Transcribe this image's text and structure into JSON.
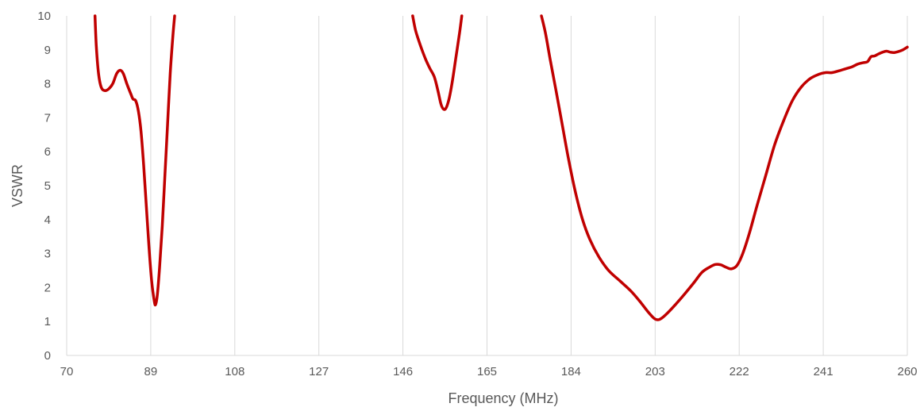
{
  "chart_data": {
    "type": "line",
    "title": "",
    "xlabel": "Frequency (MHz)",
    "ylabel": "VSWR",
    "xlim": [
      70,
      260
    ],
    "ylim": [
      0,
      10
    ],
    "x_ticks": [
      70,
      89,
      108,
      127,
      146,
      165,
      184,
      203,
      222,
      241,
      260
    ],
    "y_ticks": [
      0,
      1,
      2,
      3,
      4,
      5,
      6,
      7,
      8,
      9,
      10
    ],
    "x_tick_labels": [
      "70",
      "89",
      "108",
      "127",
      "146",
      "165",
      "184",
      "203",
      "222",
      "241",
      "260"
    ],
    "y_tick_labels": [
      "0",
      "1",
      "2",
      "3",
      "4",
      "5",
      "6",
      "7",
      "8",
      "9",
      "10"
    ],
    "grid": "vertical",
    "legend": "none",
    "line_color": "#c00000",
    "grid_color": "#d9d9d9",
    "text_color": "#595959",
    "series": [
      {
        "segments": [
          [
            [
              76.4,
              10
            ],
            [
              76.7,
              9.1
            ],
            [
              77.2,
              8.3
            ],
            [
              77.8,
              7.9
            ],
            [
              78.6,
              7.8
            ],
            [
              79.5,
              7.85
            ],
            [
              80.4,
              8.0
            ],
            [
              81.3,
              8.3
            ],
            [
              82.1,
              8.4
            ],
            [
              82.8,
              8.3
            ],
            [
              83.6,
              8.0
            ],
            [
              84.5,
              7.7
            ],
            [
              85.0,
              7.55
            ],
            [
              85.6,
              7.5
            ],
            [
              86.2,
              7.2
            ],
            [
              86.8,
              6.6
            ],
            [
              87.4,
              5.6
            ],
            [
              88.0,
              4.4
            ],
            [
              88.6,
              3.2
            ],
            [
              89.2,
              2.2
            ],
            [
              89.8,
              1.6
            ],
            [
              90.1,
              1.5
            ],
            [
              90.5,
              1.8
            ],
            [
              91.0,
              2.6
            ],
            [
              91.6,
              3.8
            ],
            [
              92.2,
              5.3
            ],
            [
              92.8,
              6.8
            ],
            [
              93.4,
              8.3
            ],
            [
              94.0,
              9.4
            ],
            [
              94.4,
              10
            ]
          ],
          [
            [
              148.2,
              10
            ],
            [
              148.8,
              9.6
            ],
            [
              149.5,
              9.3
            ],
            [
              150.3,
              9.0
            ],
            [
              151.2,
              8.7
            ],
            [
              152.1,
              8.45
            ],
            [
              153.1,
              8.2
            ],
            [
              153.9,
              7.8
            ],
            [
              154.6,
              7.4
            ],
            [
              155.2,
              7.25
            ],
            [
              155.8,
              7.3
            ],
            [
              156.5,
              7.6
            ],
            [
              157.2,
              8.1
            ],
            [
              158.0,
              8.8
            ],
            [
              158.8,
              9.5
            ],
            [
              159.3,
              10
            ]
          ],
          [
            [
              177.3,
              10
            ],
            [
              178.2,
              9.5
            ],
            [
              179.3,
              8.7
            ],
            [
              180.6,
              7.8
            ],
            [
              182.0,
              6.8
            ],
            [
              183.4,
              5.8
            ],
            [
              185.0,
              4.8
            ],
            [
              186.6,
              4.0
            ],
            [
              188.3,
              3.4
            ],
            [
              190.3,
              2.9
            ],
            [
              192.5,
              2.5
            ],
            [
              195.0,
              2.2
            ],
            [
              197.5,
              1.9
            ],
            [
              199.5,
              1.6
            ],
            [
              201.3,
              1.3
            ],
            [
              202.7,
              1.1
            ],
            [
              203.6,
              1.05
            ],
            [
              204.5,
              1.1
            ],
            [
              205.8,
              1.25
            ],
            [
              207.6,
              1.5
            ],
            [
              209.6,
              1.8
            ],
            [
              211.8,
              2.15
            ],
            [
              213.6,
              2.45
            ],
            [
              215.3,
              2.6
            ],
            [
              216.6,
              2.68
            ],
            [
              217.8,
              2.67
            ],
            [
              219.0,
              2.6
            ],
            [
              220.2,
              2.55
            ],
            [
              221.5,
              2.65
            ],
            [
              222.8,
              3.0
            ],
            [
              224.3,
              3.6
            ],
            [
              226.0,
              4.4
            ],
            [
              228.0,
              5.3
            ],
            [
              230.0,
              6.2
            ],
            [
              232.0,
              6.9
            ],
            [
              234.0,
              7.5
            ],
            [
              236.0,
              7.9
            ],
            [
              238.0,
              8.15
            ],
            [
              240.0,
              8.28
            ],
            [
              241.5,
              8.33
            ],
            [
              243.0,
              8.33
            ],
            [
              244.5,
              8.38
            ],
            [
              246.0,
              8.44
            ],
            [
              247.5,
              8.5
            ],
            [
              248.8,
              8.58
            ],
            [
              250.0,
              8.62
            ],
            [
              251.0,
              8.65
            ],
            [
              251.8,
              8.8
            ],
            [
              252.6,
              8.82
            ],
            [
              253.5,
              8.88
            ],
            [
              254.4,
              8.93
            ],
            [
              255.3,
              8.96
            ],
            [
              256.2,
              8.93
            ],
            [
              257.0,
              8.92
            ],
            [
              258.0,
              8.95
            ],
            [
              259.0,
              9.0
            ],
            [
              260.0,
              9.08
            ]
          ]
        ]
      }
    ]
  }
}
